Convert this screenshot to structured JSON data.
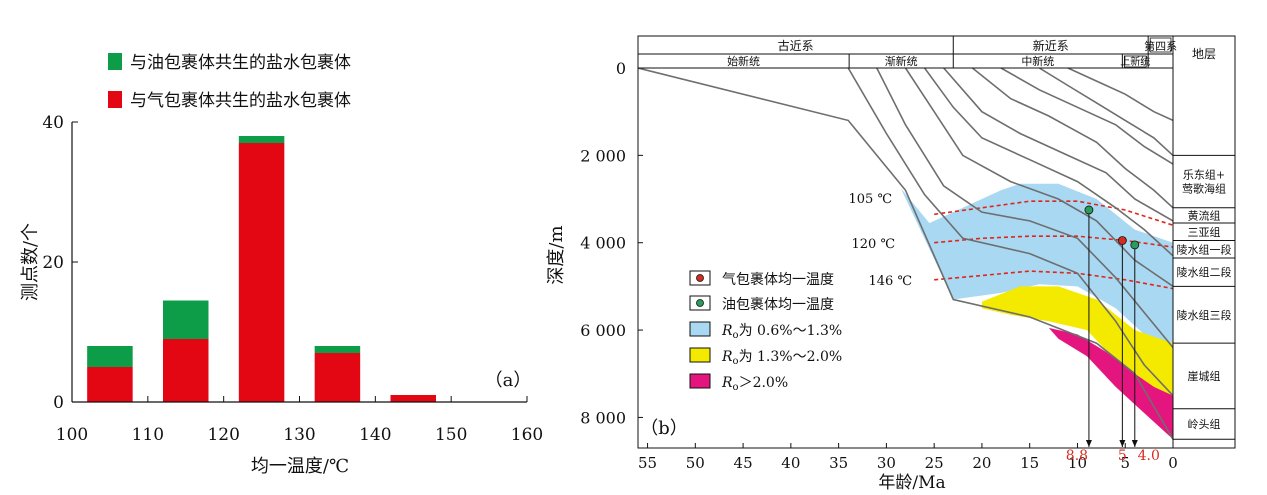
{
  "chart_data": [
    {
      "type": "bar",
      "panel_label": "（a）",
      "xlabel": "均一温度/℃",
      "ylabel": "测点数/个",
      "xlim": [
        100,
        160
      ],
      "ylim": [
        0,
        40
      ],
      "xticks": [
        "100",
        "110",
        "120",
        "130",
        "140",
        "150",
        "160"
      ],
      "yticks": [
        "0",
        "20",
        "40"
      ],
      "bin_width": 10,
      "bin_starts": [
        100,
        110,
        120,
        130,
        140,
        150
      ],
      "legend_position": "top-left",
      "series": [
        {
          "name": "与气包裹体共生的盐水包裹体",
          "color": "#e30613",
          "values": [
            5,
            9,
            37,
            7,
            1,
            0
          ]
        },
        {
          "name": "与油包裹体共生的盐水包裹体",
          "color": "#0d9c48",
          "values": [
            3,
            5.5,
            1,
            1,
            0,
            0
          ]
        }
      ]
    },
    {
      "type": "line",
      "panel_label": "（b）",
      "xlabel": "年龄/Ma",
      "ylabel": "深度/m",
      "xlim": [
        56,
        0
      ],
      "ylim": [
        0,
        8700
      ],
      "xticks": [
        "55",
        "50",
        "45",
        "40",
        "35",
        "30",
        "25",
        "20",
        "15",
        "10",
        "5",
        "0"
      ],
      "yticks": [
        "0",
        "2 000",
        "4 000",
        "6 000",
        "8 000"
      ],
      "strat_header": {
        "systems": [
          {
            "label": "古近系",
            "from": 56,
            "to": 23
          },
          {
            "label": "新近系",
            "from": 23,
            "to": 2.6
          },
          {
            "label": "第四系",
            "from": 2.6,
            "to": 0
          }
        ],
        "series": [
          {
            "label": "始新统",
            "from": 56,
            "to": 33.9
          },
          {
            "label": "渐新统",
            "from": 33.9,
            "to": 23
          },
          {
            "label": "中新统",
            "from": 23,
            "to": 5.3
          },
          {
            "label": "上新统",
            "from": 5.3,
            "to": 2.6
          }
        ],
        "formation_title": "地层"
      },
      "formations": [
        {
          "label": "乐东组+\n莺歌海组",
          "top": 2000,
          "bottom": 3200
        },
        {
          "label": "黄流组",
          "top": 3200,
          "bottom": 3550
        },
        {
          "label": "三亚组",
          "top": 3550,
          "bottom": 3950
        },
        {
          "label": "陵水组一段",
          "top": 3950,
          "bottom": 4350
        },
        {
          "label": "陵水组二段",
          "top": 4350,
          "bottom": 5000
        },
        {
          "label": "陵水组三段",
          "top": 5000,
          "bottom": 6300
        },
        {
          "label": "崖城组",
          "top": 6300,
          "bottom": 7800
        },
        {
          "label": "岭头组",
          "top": 7800,
          "bottom": 8500
        }
      ],
      "burial_curves": [
        {
          "points": [
            [
              56,
              0
            ],
            [
              34,
              1200
            ],
            [
              28,
              2800
            ],
            [
              23,
              5300
            ],
            [
              15,
              5700
            ],
            [
              8,
              6300
            ],
            [
              4,
              7000
            ],
            [
              0,
              8500
            ]
          ]
        },
        {
          "points": [
            [
              34,
              0
            ],
            [
              30,
              1500
            ],
            [
              26,
              2900
            ],
            [
              22,
              3900
            ],
            [
              15,
              4250
            ],
            [
              10,
              4700
            ],
            [
              6,
              5800
            ],
            [
              3,
              6800
            ],
            [
              0,
              7500
            ]
          ]
        },
        {
          "points": [
            [
              31,
              0
            ],
            [
              28,
              1300
            ],
            [
              24,
              2700
            ],
            [
              20,
              3300
            ],
            [
              15,
              3500
            ],
            [
              10,
              3900
            ],
            [
              6,
              4800
            ],
            [
              3,
              5600
            ],
            [
              0,
              6400
            ]
          ]
        },
        {
          "points": [
            [
              28,
              0
            ],
            [
              25,
              1000
            ],
            [
              22,
              2000
            ],
            [
              17,
              2600
            ],
            [
              12,
              3000
            ],
            [
              8,
              3500
            ],
            [
              4,
              4400
            ],
            [
              0,
              5000
            ]
          ]
        },
        {
          "points": [
            [
              26,
              0
            ],
            [
              23,
              900
            ],
            [
              20,
              1600
            ],
            [
              15,
              2100
            ],
            [
              10,
              2600
            ],
            [
              6,
              3200
            ],
            [
              3,
              3700
            ],
            [
              0,
              4300
            ]
          ]
        },
        {
          "points": [
            [
              24,
              0
            ],
            [
              20,
              1000
            ],
            [
              16,
              1500
            ],
            [
              11,
              2000
            ],
            [
              7,
              2400
            ],
            [
              4,
              3000
            ],
            [
              0,
              3500
            ]
          ]
        },
        {
          "points": [
            [
              21,
              0
            ],
            [
              17,
              700
            ],
            [
              13,
              1100
            ],
            [
              8,
              1700
            ],
            [
              5,
              2300
            ],
            [
              2,
              2800
            ],
            [
              0,
              3200
            ]
          ]
        },
        {
          "points": [
            [
              18,
              0
            ],
            [
              14,
              500
            ],
            [
              10,
              900
            ],
            [
              6,
              1300
            ],
            [
              3,
              1800
            ],
            [
              0,
              2200
            ]
          ]
        },
        {
          "points": [
            [
              14,
              0
            ],
            [
              11,
              400
            ],
            [
              8,
              800
            ],
            [
              5,
              1200
            ],
            [
              2,
              1600
            ],
            [
              0,
              2000
            ]
          ]
        },
        {
          "points": [
            [
              11,
              0
            ],
            [
              8,
              300
            ],
            [
              5,
              600
            ],
            [
              2,
              1000
            ],
            [
              0,
              1200
            ]
          ]
        }
      ],
      "isotherms": [
        {
          "label": "105 ℃",
          "points": [
            [
              25,
              3350
            ],
            [
              20,
              3200
            ],
            [
              15,
              3050
            ],
            [
              10,
              3050
            ],
            [
              5,
              3250
            ],
            [
              0,
              3600
            ]
          ]
        },
        {
          "label": "120 ℃",
          "points": [
            [
              25,
              4000
            ],
            [
              20,
              3900
            ],
            [
              15,
              3850
            ],
            [
              10,
              3850
            ],
            [
              5,
              3950
            ],
            [
              0,
              4100
            ]
          ]
        },
        {
          "label": "146 ℃",
          "points": [
            [
              25,
              4850
            ],
            [
              20,
              4750
            ],
            [
              15,
              4650
            ],
            [
              10,
              4700
            ],
            [
              5,
              4850
            ],
            [
              0,
              5050
            ]
          ]
        }
      ],
      "maturity_zones": [
        {
          "label": "Ro为 0.6%～1.3%",
          "color": "#a8d8f2",
          "polygon": [
            [
              28.5,
              2750
            ],
            [
              25.5,
              3550
            ],
            [
              23,
              3300
            ],
            [
              18,
              2800
            ],
            [
              16,
              2650
            ],
            [
              12,
              2650
            ],
            [
              8,
              3000
            ],
            [
              4,
              3700
            ],
            [
              0,
              4000
            ],
            [
              0,
              6300
            ],
            [
              3,
              6100
            ],
            [
              6,
              5500
            ],
            [
              10,
              5000
            ],
            [
              14,
              4950
            ],
            [
              18,
              5150
            ],
            [
              23,
              5300
            ]
          ]
        },
        {
          "label": "Ro为 1.3%～2.0%",
          "color": "#f4ea00",
          "polygon": [
            [
              20,
              5350
            ],
            [
              16,
              5000
            ],
            [
              12,
              5000
            ],
            [
              8,
              5300
            ],
            [
              4,
              6000
            ],
            [
              0,
              6300
            ],
            [
              0,
              7500
            ],
            [
              3,
              7300
            ],
            [
              6,
              6700
            ],
            [
              9,
              6000
            ],
            [
              13,
              5800
            ],
            [
              17,
              5650
            ],
            [
              20,
              5500
            ]
          ]
        },
        {
          "label": "Ro＞2.0%",
          "color": "#e5157f",
          "polygon": [
            [
              13,
              5950
            ],
            [
              10,
              6100
            ],
            [
              7,
              6500
            ],
            [
              4,
              7000
            ],
            [
              2,
              7300
            ],
            [
              0,
              7500
            ],
            [
              0,
              8500
            ],
            [
              3,
              7900
            ],
            [
              6,
              7300
            ],
            [
              9,
              6600
            ],
            [
              12,
              6200
            ]
          ]
        }
      ],
      "inclusion_points": [
        {
          "type": "gas",
          "age": 5.3,
          "depth": 3950,
          "color": "#d62b1f"
        },
        {
          "type": "oil",
          "age": 8.8,
          "depth": 3250,
          "color": "#2a9d5a"
        },
        {
          "type": "oil",
          "age": 4.0,
          "depth": 4050,
          "color": "#2a9d5a"
        }
      ],
      "age_marks": [
        "8.8",
        "5",
        "4.0"
      ],
      "legend": {
        "gas_point": "气包裹体均一温度",
        "oil_point": "油包裹体均一温度",
        "zone1": "为 0.6%～1.3%",
        "zone2": "为 1.3%～2.0%",
        "zone3": "＞2.0%",
        "ro_symbol": "R",
        "ro_sub": "o"
      }
    }
  ]
}
